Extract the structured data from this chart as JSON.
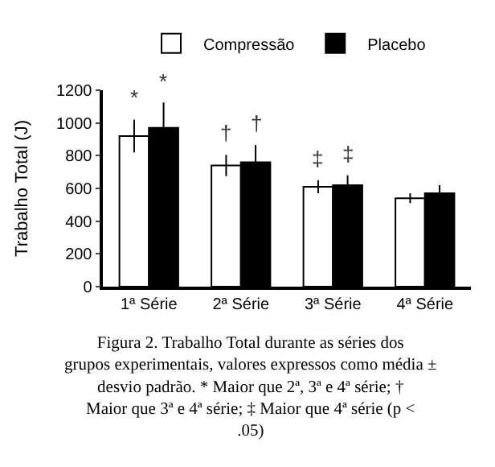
{
  "chart_data": {
    "type": "bar",
    "ylabel": "Trabalho Total (J)",
    "categories": [
      "1ª Série",
      "2ª Série",
      "3ª Série",
      "4ª Série"
    ],
    "series": [
      {
        "name": "Compressão",
        "color": "#ffffff",
        "values": [
          920,
          740,
          610,
          540
        ],
        "errors": [
          100,
          65,
          40,
          30
        ]
      },
      {
        "name": "Placebo",
        "color": "#000000",
        "values": [
          970,
          760,
          620,
          570
        ],
        "errors": [
          155,
          105,
          60,
          50
        ]
      }
    ],
    "ylim": [
      0,
      1200
    ],
    "yticks": [
      0,
      200,
      400,
      600,
      800,
      1000,
      1200
    ],
    "legend": "top",
    "annotations": [
      "*",
      "*",
      "†",
      "†",
      "‡",
      "‡",
      "Figura 2. Trabalho Total durante as séries dos grupos experimentais, valores expressos como média ± desvio padrão. * Maior que 2ª, 3ª e 4ª série; † Maior que 3ª e 4ª série; ‡ Maior que 4ª série (p < .05)"
    ]
  }
}
